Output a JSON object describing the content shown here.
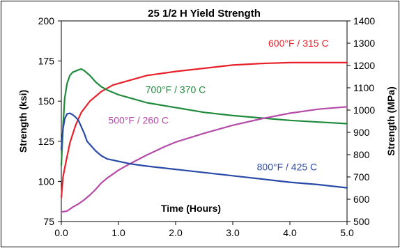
{
  "chart_data": {
    "type": "line",
    "title": "25 1/2 H Yield Strength",
    "xlabel": "Time (Hours)",
    "ylabel": "Strength (ksi)",
    "y2label": "Strength (MPa)",
    "xlim": [
      0.0,
      5.0
    ],
    "ylim": [
      75,
      200
    ],
    "y2lim": [
      500,
      1400
    ],
    "x_ticks": [
      "0.0",
      "1.0",
      "2.0",
      "3.0",
      "4.0",
      "5.0"
    ],
    "y_ticks": [
      "75",
      "100",
      "125",
      "150",
      "175",
      "200"
    ],
    "y2_ticks": [
      "500",
      "600",
      "700",
      "800",
      "900",
      "1000",
      "1100",
      "1200",
      "1300",
      "1400"
    ],
    "grid": false,
    "series": [
      {
        "name": "600°F / 315 C",
        "color": "#e8202a",
        "x": [
          0,
          0.03,
          0.08,
          0.15,
          0.25,
          0.35,
          0.5,
          0.7,
          0.9,
          1.2,
          1.5,
          2.0,
          2.5,
          3.0,
          3.5,
          4.0,
          4.5,
          5.0
        ],
        "y": [
          90,
          103,
          112,
          124,
          135,
          143,
          150,
          156,
          160,
          163,
          166,
          168.5,
          170.5,
          172.5,
          173.5,
          174,
          174,
          174
        ]
      },
      {
        "name": "700°F / 370 C",
        "color": "#1f8a3c",
        "x": [
          0,
          0.03,
          0.06,
          0.1,
          0.15,
          0.2,
          0.3,
          0.35,
          0.4,
          0.5,
          0.6,
          0.7,
          0.8,
          1.0,
          1.2,
          1.5,
          2.0,
          2.5,
          3.0,
          3.5,
          4.0,
          4.5,
          5.0
        ],
        "y": [
          110,
          135,
          152,
          161,
          166,
          168,
          169.5,
          170,
          169,
          166,
          162,
          159,
          157,
          154,
          152,
          149,
          146,
          143,
          141,
          139.5,
          138,
          137,
          136
        ]
      },
      {
        "name": "500°F / 260 C",
        "color": "#b54aa8",
        "x": [
          0,
          0.1,
          0.2,
          0.3,
          0.4,
          0.5,
          0.6,
          0.7,
          0.8,
          1.0,
          1.2,
          1.5,
          1.8,
          2.0,
          2.5,
          3.0,
          3.5,
          4.0,
          4.5,
          5.0
        ],
        "y": [
          81,
          81.5,
          84,
          86,
          88.5,
          91.5,
          95,
          99,
          102,
          107,
          111,
          116.5,
          121.5,
          124.5,
          130,
          135,
          139,
          142.5,
          145,
          146.5
        ]
      },
      {
        "name": "800°F / 425 C",
        "color": "#2a4aa8",
        "x": [
          0,
          0.03,
          0.06,
          0.1,
          0.15,
          0.2,
          0.25,
          0.3,
          0.35,
          0.4,
          0.45,
          0.5,
          0.6,
          0.7,
          0.8,
          1.0,
          1.2,
          1.5,
          2.0,
          2.5,
          3.0,
          3.5,
          4.0,
          4.5,
          5.0
        ],
        "y": [
          120,
          133,
          139,
          142,
          142.5,
          141.5,
          140,
          138,
          134,
          130,
          125,
          123,
          119,
          116,
          114,
          112.5,
          111,
          109.5,
          107.5,
          105.5,
          103.5,
          101.5,
          99.5,
          98,
          96
        ]
      }
    ],
    "labels": [
      {
        "text": "600°F / 315 C",
        "series": 0,
        "x": 4.15,
        "y": 184
      },
      {
        "text": "700°F / 370 C",
        "series": 1,
        "x": 2.0,
        "y": 155
      },
      {
        "text": "500°F / 260 C",
        "series": 2,
        "x": 1.35,
        "y": 136
      },
      {
        "text": "800°F / 425 C",
        "series": 3,
        "x": 3.95,
        "y": 107
      }
    ]
  }
}
